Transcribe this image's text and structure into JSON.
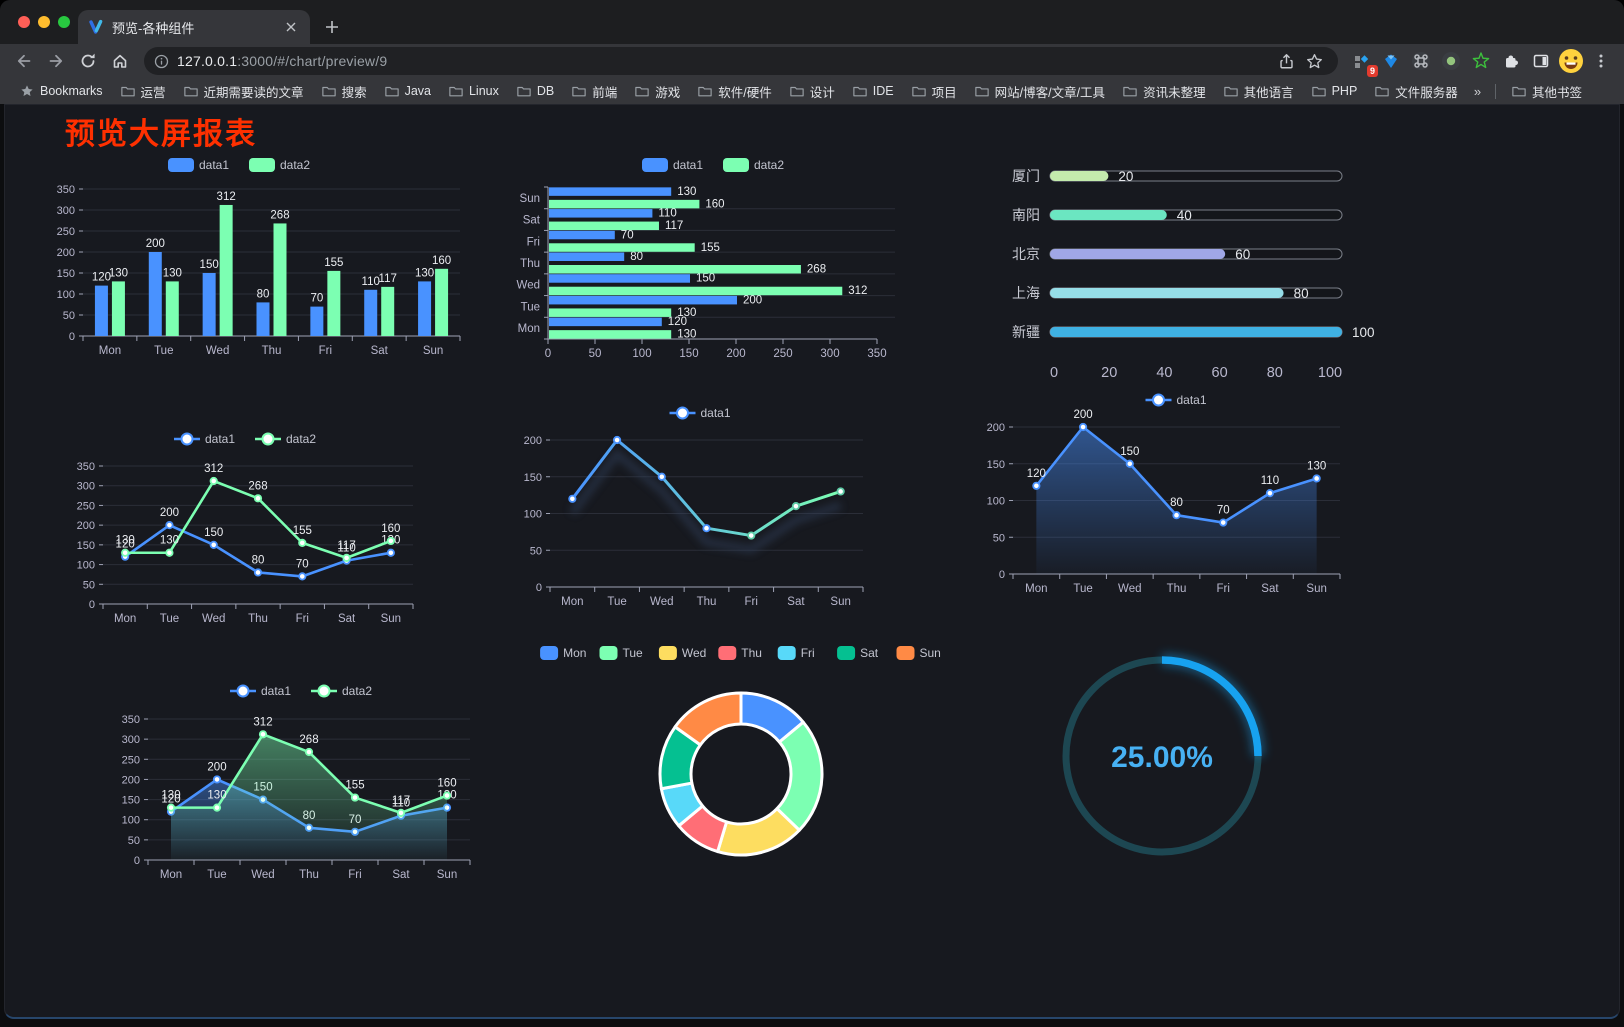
{
  "browser": {
    "tab_title": "预览-各种组件",
    "url": {
      "host": "127.0.0.1",
      "rest": ":3000/#/chart/preview/9"
    },
    "extension_badge": "9",
    "bookmarks_root": "Bookmarks",
    "bookmarks": [
      "运营",
      "近期需要读的文章",
      "搜索",
      "Java",
      "Linux",
      "DB",
      "前端",
      "游戏",
      "软件/硬件",
      "设计",
      "IDE",
      "项目",
      "网站/博客/文章/工具",
      "资讯未整理",
      "其他语言",
      "PHP",
      "文件服务器"
    ],
    "overflow": "»",
    "other_bookmarks": "其他书签"
  },
  "page": {
    "title": "预览大屏报表",
    "title_color": "#ff3000"
  },
  "chart_data": [
    {
      "id": "grouped-bar",
      "type": "bar",
      "categories": [
        "Mon",
        "Tue",
        "Wed",
        "Thu",
        "Fri",
        "Sat",
        "Sun"
      ],
      "series": [
        {
          "name": "data1",
          "values": [
            120,
            200,
            150,
            80,
            70,
            110,
            130
          ],
          "color": "#4992ff"
        },
        {
          "name": "data2",
          "values": [
            130,
            130,
            312,
            268,
            155,
            117,
            160
          ],
          "color": "#7cffb2"
        }
      ],
      "ylim": [
        0,
        350
      ],
      "ytick": 50,
      "legend_position": "top",
      "grid": true
    },
    {
      "id": "horizontal-bar",
      "type": "bar",
      "orientation": "horizontal",
      "categories": [
        "Mon",
        "Tue",
        "Wed",
        "Thu",
        "Fri",
        "Sat",
        "Sun"
      ],
      "series": [
        {
          "name": "data1",
          "values": [
            120,
            200,
            150,
            80,
            70,
            110,
            130
          ],
          "color": "#4992ff"
        },
        {
          "name": "data2",
          "values": [
            130,
            130,
            312,
            268,
            155,
            117,
            160
          ],
          "color": "#7cffb2"
        }
      ],
      "xlim": [
        0,
        350
      ],
      "xtick": 50,
      "legend_position": "top",
      "category_order": "bottom-to-top"
    },
    {
      "id": "progress-bars",
      "type": "bar",
      "orientation": "horizontal",
      "variant": "progress",
      "categories": [
        "厦门",
        "南阳",
        "北京",
        "上海",
        "新疆"
      ],
      "values": [
        20,
        40,
        60,
        80,
        100
      ],
      "colors": [
        "#c4ebad",
        "#6be6c1",
        "#a0a7e6",
        "#96dee8",
        "#3fb1e3"
      ],
      "xlim": [
        0,
        100
      ],
      "xtick": 20
    },
    {
      "id": "two-line",
      "type": "line",
      "categories": [
        "Mon",
        "Tue",
        "Wed",
        "Thu",
        "Fri",
        "Sat",
        "Sun"
      ],
      "series": [
        {
          "name": "data1",
          "values": [
            120,
            200,
            150,
            80,
            70,
            110,
            130
          ],
          "color": "#4992ff"
        },
        {
          "name": "data2",
          "values": [
            130,
            130,
            312,
            268,
            155,
            117,
            160
          ],
          "color": "#7cffb2"
        }
      ],
      "ylim": [
        0,
        350
      ],
      "ytick": 50,
      "point_labels": true,
      "legend_position": "top"
    },
    {
      "id": "gradient-line",
      "type": "line",
      "categories": [
        "Mon",
        "Tue",
        "Wed",
        "Thu",
        "Fri",
        "Sat",
        "Sun"
      ],
      "series": [
        {
          "name": "data1",
          "values": [
            120,
            200,
            150,
            80,
            70,
            110,
            130
          ],
          "color_start": "#4992ff",
          "color_end": "#7cffb2"
        }
      ],
      "ylim": [
        0,
        200
      ],
      "ytick": 50,
      "point_labels": false,
      "legend_position": "top",
      "shadow": true
    },
    {
      "id": "area-line",
      "type": "area",
      "categories": [
        "Mon",
        "Tue",
        "Wed",
        "Thu",
        "Fri",
        "Sat",
        "Sun"
      ],
      "series": [
        {
          "name": "data1",
          "values": [
            120,
            200,
            150,
            80,
            70,
            110,
            130
          ],
          "color": "#4992ff"
        }
      ],
      "ylim": [
        0,
        200
      ],
      "ytick": 50,
      "point_labels": true,
      "legend_position": "top"
    },
    {
      "id": "two-line-area",
      "type": "area",
      "categories": [
        "Mon",
        "Tue",
        "Wed",
        "Thu",
        "Fri",
        "Sat",
        "Sun"
      ],
      "series": [
        {
          "name": "data1",
          "values": [
            120,
            200,
            150,
            80,
            70,
            110,
            130
          ],
          "color": "#4992ff"
        },
        {
          "name": "data2",
          "values": [
            130,
            130,
            312,
            268,
            155,
            117,
            160
          ],
          "color": "#7cffb2"
        }
      ],
      "ylim": [
        0,
        350
      ],
      "ytick": 50,
      "point_labels": true,
      "legend_position": "top"
    },
    {
      "id": "donut",
      "type": "pie",
      "categories": [
        "Mon",
        "Tue",
        "Wed",
        "Thu",
        "Fri",
        "Sat",
        "Sun"
      ],
      "values": [
        120,
        200,
        150,
        80,
        70,
        110,
        130
      ],
      "colors": [
        "#4992ff",
        "#7cffb2",
        "#fddd60",
        "#ff6e76",
        "#58d9f9",
        "#05c091",
        "#ff8a45"
      ],
      "inner_radius_ratio": 0.62,
      "legend_position": "top"
    },
    {
      "id": "gauge",
      "type": "gauge",
      "value": 25,
      "label": "25.00%",
      "color": "#17a2f0",
      "track_color": "#1d4752",
      "text_color": "#47b1f3"
    }
  ]
}
